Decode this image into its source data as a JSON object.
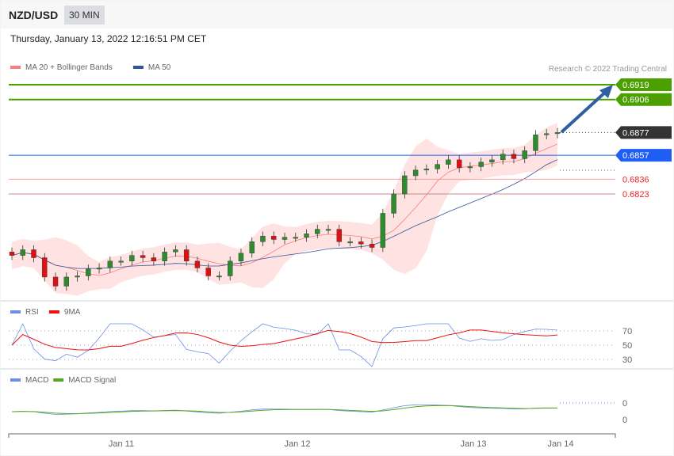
{
  "header": {
    "symbol": "NZD/USD",
    "timeframe": "30 MIN",
    "datetime": "Thursday, January 13, 2022 12:16:51 PM CET"
  },
  "credit": "Research © 2022 Trading Central",
  "chart_data": {
    "type": "candlestick",
    "legend": {
      "main": [
        "MA 20 + Bollinger Bands",
        "MA 50"
      ],
      "rsi": [
        "RSI",
        "9MA"
      ],
      "macd": [
        "MACD",
        "MACD Signal"
      ]
    },
    "colors": {
      "ma20": "#ff7b7b",
      "ma50": "#2f5597",
      "up": "#2e8b2e",
      "down": "#d11",
      "target": "#4ba000",
      "pivot": "#1e5ef5",
      "support": "#ee2222",
      "last": "#333333",
      "rsi": "#6a8de8",
      "rsi_ma": "#ee1111",
      "macd": "#6a8de8",
      "macd_signal": "#55a81d"
    },
    "x_ticks": [
      "Jan 11",
      "Jan 12",
      "Jan 13",
      "Jan 14"
    ],
    "closes": [
      0.6769,
      0.6774,
      0.6767,
      0.675,
      0.6742,
      0.675,
      0.6751,
      0.6757,
      0.6758,
      0.6764,
      0.6764,
      0.6769,
      0.6767,
      0.6764,
      0.6772,
      0.6774,
      0.6764,
      0.6758,
      0.6751,
      0.6751,
      0.6764,
      0.6771,
      0.6781,
      0.6786,
      0.6783,
      0.6785,
      0.6785,
      0.6788,
      0.6792,
      0.6792,
      0.6781,
      0.6781,
      0.6779,
      0.6776,
      0.6806,
      0.6823,
      0.6839,
      0.6844,
      0.6845,
      0.6849,
      0.6853,
      0.6846,
      0.6847,
      0.6851,
      0.6853,
      0.6858,
      0.6854,
      0.6861,
      0.6875,
      0.6876,
      0.6877
    ],
    "levels": [
      {
        "label": "0.6919",
        "type": "target"
      },
      {
        "label": "0.6906",
        "type": "target"
      },
      {
        "label": "0.6877",
        "type": "last"
      },
      {
        "label": "0.6857",
        "type": "pivot"
      },
      {
        "label": "0.6836",
        "type": "support"
      },
      {
        "label": "0.6823",
        "type": "support"
      }
    ],
    "rsi_ticks": [
      "70",
      "50",
      "30"
    ],
    "macd_ticks": [
      "0",
      "0"
    ]
  }
}
